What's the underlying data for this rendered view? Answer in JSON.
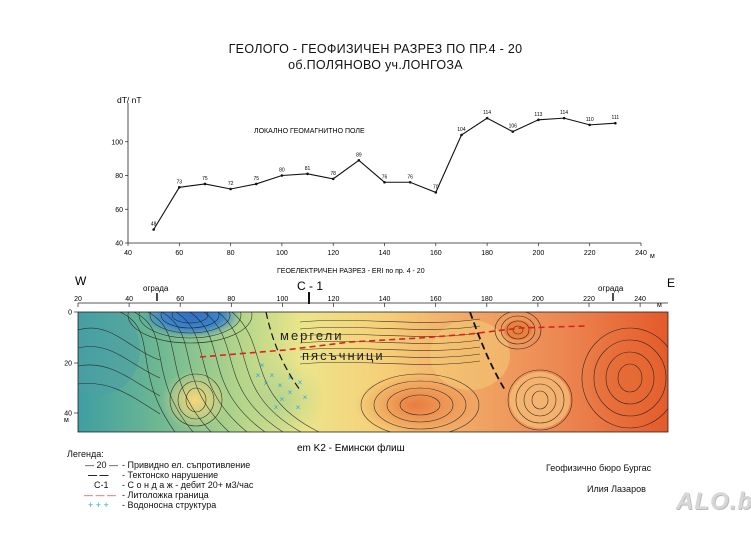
{
  "title": {
    "line1": "ГЕОЛОГО - ГЕОФИЗИЧЕН РАЗРЕЗ ПО ПР.4 - 20",
    "line2": "об.ПОЛЯНОВО  уч.ЛОНГОЗА"
  },
  "chart_data": {
    "type": "line",
    "ylabel": "dT/ nT",
    "xunit": "м",
    "annotation": "ЛОКАЛНО ГЕОМАГНИТНО ПОЛЕ",
    "xlim": [
      40,
      240
    ],
    "ylim": [
      40,
      120
    ],
    "xticks": [
      40,
      60,
      80,
      100,
      120,
      140,
      160,
      180,
      200,
      220,
      240
    ],
    "yticks": [
      40,
      60,
      80,
      100
    ],
    "x": [
      50,
      60,
      70,
      80,
      90,
      100,
      110,
      120,
      130,
      140,
      150,
      160,
      170,
      180,
      190,
      200,
      210,
      220,
      230
    ],
    "y": [
      48,
      73,
      75,
      72,
      75,
      80,
      81,
      78,
      89,
      76,
      76,
      70,
      104,
      114,
      106,
      113,
      114,
      110,
      111
    ],
    "point_labels": [
      "48",
      "73",
      "75",
      "72",
      "75",
      "80",
      "81",
      "78",
      "89",
      "76",
      "76",
      "70",
      "104",
      "114",
      "106",
      "113",
      "114",
      "110",
      "111"
    ]
  },
  "section": {
    "title": "ГЕОЕЛЕКТРИЧЕН РАЗРЕЗ - ERI   по пр. 4 - 20",
    "west": "W",
    "east": "E",
    "fence_left": "ограда",
    "fence_right": "ограда",
    "well": "С - 1",
    "xticks": [
      "20",
      "40",
      "60",
      "80",
      "100",
      "120",
      "140",
      "160",
      "180",
      "200",
      "220",
      "240"
    ],
    "unit": "м",
    "depth_ticks": [
      "0",
      "20",
      "40"
    ],
    "depth_unit": "м",
    "lith_upper": "мергели",
    "lith_lower": "пясъчници",
    "formation": "em K2 - Емински флиш"
  },
  "legend": {
    "title": "Легенда:",
    "items": [
      {
        "symbol": "— 20 —",
        "label": "- Привидно ел. съпротивление"
      },
      {
        "symbol": "— —",
        "label": "- Тектонско нарушение"
      },
      {
        "symbol": "С-1",
        "label": "- С о н д а ж - дебит  20+  м3/час"
      },
      {
        "symbol": "— — —",
        "label": "- Литоложка граница"
      },
      {
        "symbol": "+ + +",
        "label": "- Водоносна структура"
      }
    ]
  },
  "credits": {
    "bureau": "Геофизично бюро   Бургас",
    "author": "Илия    Лазаров"
  },
  "watermark": "ALO.bg",
  "colors": {
    "low": "#3a76c4",
    "mid": "#e8e07a",
    "high": "#e45a2a",
    "lith": "#e02020",
    "water": "#2aa6e8"
  }
}
